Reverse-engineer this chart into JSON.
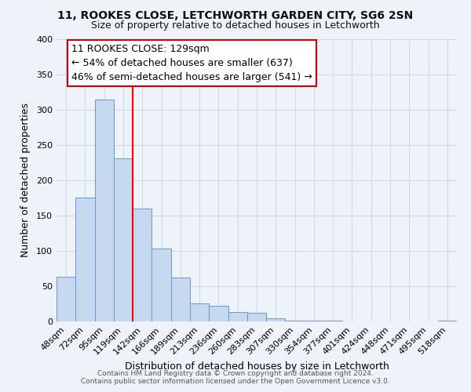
{
  "title": "11, ROOKES CLOSE, LETCHWORTH GARDEN CITY, SG6 2SN",
  "subtitle": "Size of property relative to detached houses in Letchworth",
  "xlabel": "Distribution of detached houses by size in Letchworth",
  "ylabel": "Number of detached properties",
  "footer_line1": "Contains HM Land Registry data © Crown copyright and database right 2024.",
  "footer_line2": "Contains public sector information licensed under the Open Government Licence v3.0.",
  "bin_labels": [
    "48sqm",
    "72sqm",
    "95sqm",
    "119sqm",
    "142sqm",
    "166sqm",
    "189sqm",
    "213sqm",
    "236sqm",
    "260sqm",
    "283sqm",
    "307sqm",
    "330sqm",
    "354sqm",
    "377sqm",
    "401sqm",
    "424sqm",
    "448sqm",
    "471sqm",
    "495sqm",
    "518sqm"
  ],
  "bar_values": [
    63,
    176,
    315,
    231,
    160,
    103,
    62,
    26,
    22,
    13,
    12,
    5,
    1,
    1,
    1,
    0,
    0,
    0,
    0,
    0,
    1
  ],
  "bar_color": "#c5d8f0",
  "bar_edge_color": "#6699cc",
  "red_line_x": 3.5,
  "annotation_title": "11 ROOKES CLOSE: 129sqm",
  "annotation_line1": "← 54% of detached houses are smaller (637)",
  "annotation_line2": "46% of semi-detached houses are larger (541) →",
  "ylim_max": 400,
  "yticks": [
    0,
    50,
    100,
    150,
    200,
    250,
    300,
    350,
    400
  ],
  "bg_color": "#eef2f9",
  "grid_color": "#d0d8ea",
  "ann_box_fc": "#ffffff",
  "ann_box_ec": "#cc0000",
  "title_fontsize": 10,
  "subtitle_fontsize": 9,
  "ann_fontsize": 9,
  "tick_fontsize": 8,
  "label_fontsize": 9
}
